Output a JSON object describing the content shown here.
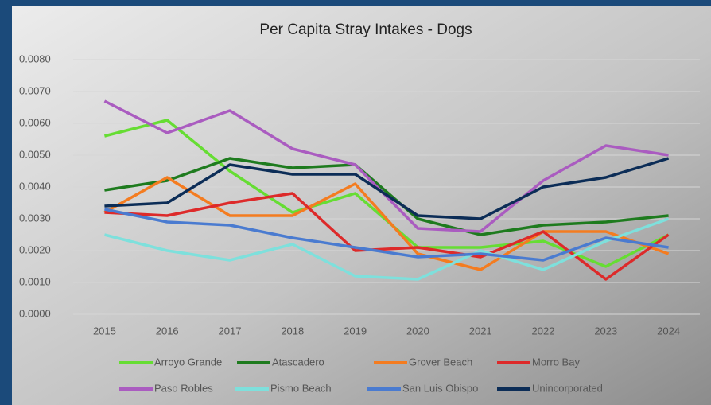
{
  "chart_data": {
    "type": "line",
    "title": "Per Capita Stray Intakes - Dogs",
    "categories": [
      "2015",
      "2016",
      "2017",
      "2018",
      "2019",
      "2020",
      "2021",
      "2022",
      "2023",
      "2024"
    ],
    "ylim": [
      0,
      0.008
    ],
    "yticks": [
      {
        "value": 0,
        "label": "0.0000"
      },
      {
        "value": 0.001,
        "label": "0.0010"
      },
      {
        "value": 0.002,
        "label": "0.0020"
      },
      {
        "value": 0.003,
        "label": "0.0030"
      },
      {
        "value": 0.004,
        "label": "0.0040"
      },
      {
        "value": 0.005,
        "label": "0.0050"
      },
      {
        "value": 0.006,
        "label": "0.0060"
      },
      {
        "value": 0.007,
        "label": "0.0070"
      },
      {
        "value": 0.008,
        "label": "0.0080"
      }
    ],
    "grid": true,
    "legend": "bottom",
    "series": [
      {
        "name": "Arroyo Grande",
        "color": "#66dd33",
        "values": [
          0.0056,
          0.0061,
          0.0045,
          0.0032,
          0.0038,
          0.0021,
          0.0021,
          0.0023,
          0.0015,
          0.0025
        ]
      },
      {
        "name": "Atascadero",
        "color": "#1e7b1e",
        "values": [
          0.0039,
          0.0042,
          0.0049,
          0.0046,
          0.0047,
          0.003,
          0.0025,
          0.0028,
          0.0029,
          0.0031
        ]
      },
      {
        "name": "Grover Beach",
        "color": "#f47c20",
        "values": [
          0.0032,
          0.0043,
          0.0031,
          0.0031,
          0.0041,
          0.0019,
          0.0014,
          0.0026,
          0.0026,
          0.0019
        ]
      },
      {
        "name": "Morro Bay",
        "color": "#dd2a2a",
        "values": [
          0.0032,
          0.0031,
          0.0035,
          0.0038,
          0.002,
          0.0021,
          0.0018,
          0.0026,
          0.0011,
          0.0025
        ]
      },
      {
        "name": "Paso Robles",
        "color": "#aa5cc0",
        "values": [
          0.0067,
          0.0057,
          0.0064,
          0.0052,
          0.0047,
          0.0027,
          0.0026,
          0.0042,
          0.0053,
          0.005
        ]
      },
      {
        "name": "Pismo Beach",
        "color": "#7ee0dc",
        "values": [
          0.0025,
          0.002,
          0.0017,
          0.0022,
          0.0012,
          0.0011,
          0.002,
          0.0014,
          0.0023,
          0.003
        ]
      },
      {
        "name": "San Luis Obispo",
        "color": "#4a7bd0",
        "values": [
          0.0033,
          0.0029,
          0.0028,
          0.0024,
          0.0021,
          0.0018,
          0.0019,
          0.0017,
          0.0024,
          0.0021
        ]
      },
      {
        "name": "Unincorporated",
        "color": "#0c2d57",
        "values": [
          0.0034,
          0.0035,
          0.0047,
          0.0044,
          0.0044,
          0.0031,
          0.003,
          0.004,
          0.0043,
          0.0049
        ]
      }
    ]
  }
}
